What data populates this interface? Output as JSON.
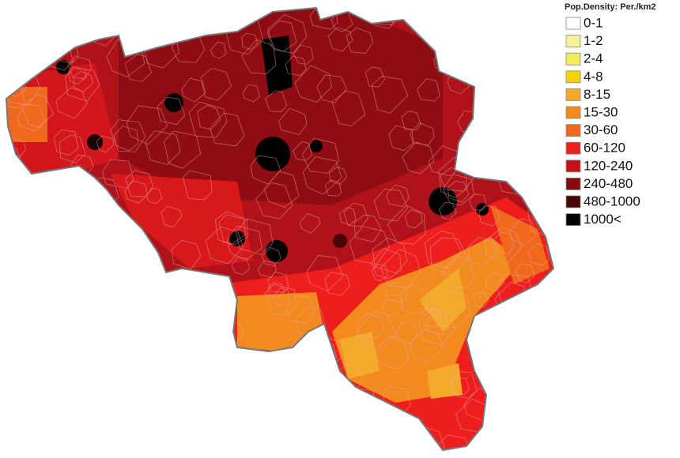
{
  "legend": {
    "title": "Pop.Density: Per./km2",
    "items": [
      {
        "label": "0-1",
        "color": "#ffffff"
      },
      {
        "label": "1-2",
        "color": "#f6f29c"
      },
      {
        "label": "2-4",
        "color": "#f3ec5a"
      },
      {
        "label": "4-8",
        "color": "#f4d200"
      },
      {
        "label": "8-15",
        "color": "#f5a92a"
      },
      {
        "label": "15-30",
        "color": "#f28a1f"
      },
      {
        "label": "30-60",
        "color": "#f0681e"
      },
      {
        "label": "60-120",
        "color": "#ee1e1e"
      },
      {
        "label": "120-240",
        "color": "#c4111a"
      },
      {
        "label": "240-480",
        "color": "#870a10"
      },
      {
        "label": "480-1000",
        "color": "#470507"
      },
      {
        "label": "1000<",
        "color": "#000000"
      }
    ]
  }
}
